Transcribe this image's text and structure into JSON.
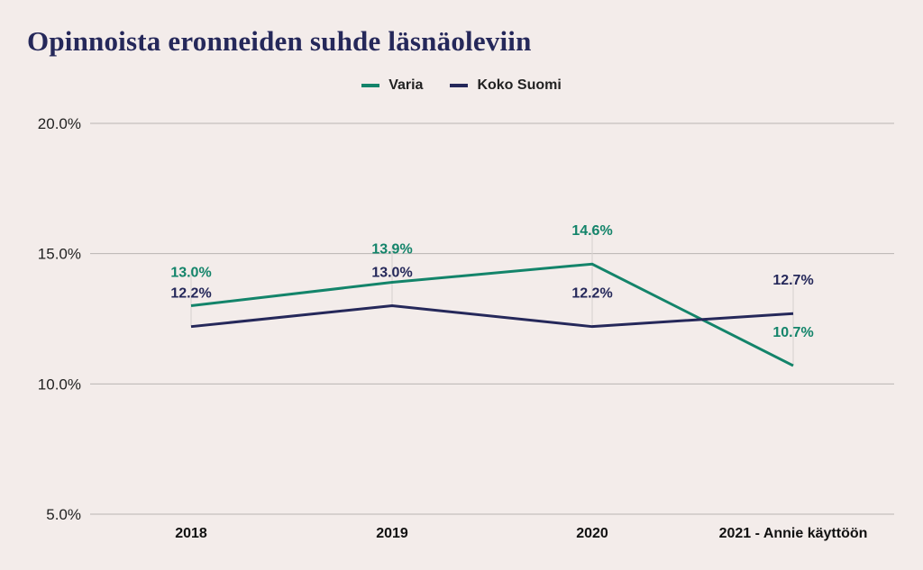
{
  "chart_data": {
    "type": "line",
    "title": "Opinnoista eronneiden suhde läsnäoleviin",
    "categories": [
      "2018",
      "2019",
      "2020",
      "2021 - Annie käyttöön"
    ],
    "series": [
      {
        "name": "Varia",
        "color": "#13846a",
        "values": [
          13.0,
          13.9,
          14.6,
          10.7
        ],
        "labels": [
          "13.0%",
          "13.9%",
          "14.6%",
          "10.7%"
        ]
      },
      {
        "name": "Koko Suomi",
        "color": "#25285a",
        "values": [
          12.2,
          13.0,
          12.2,
          12.7
        ],
        "labels": [
          "12.2%",
          "13.0%",
          "12.2%",
          "12.7%"
        ]
      }
    ],
    "yticks": [
      5.0,
      10.0,
      15.0,
      20.0
    ],
    "ytick_labels": [
      "5.0%",
      "10.0%",
      "15.0%",
      "20.0%"
    ],
    "ylim": [
      5.0,
      20.0
    ],
    "xlabel": "",
    "ylabel": "",
    "legend_position": "top-center",
    "grid": true
  }
}
